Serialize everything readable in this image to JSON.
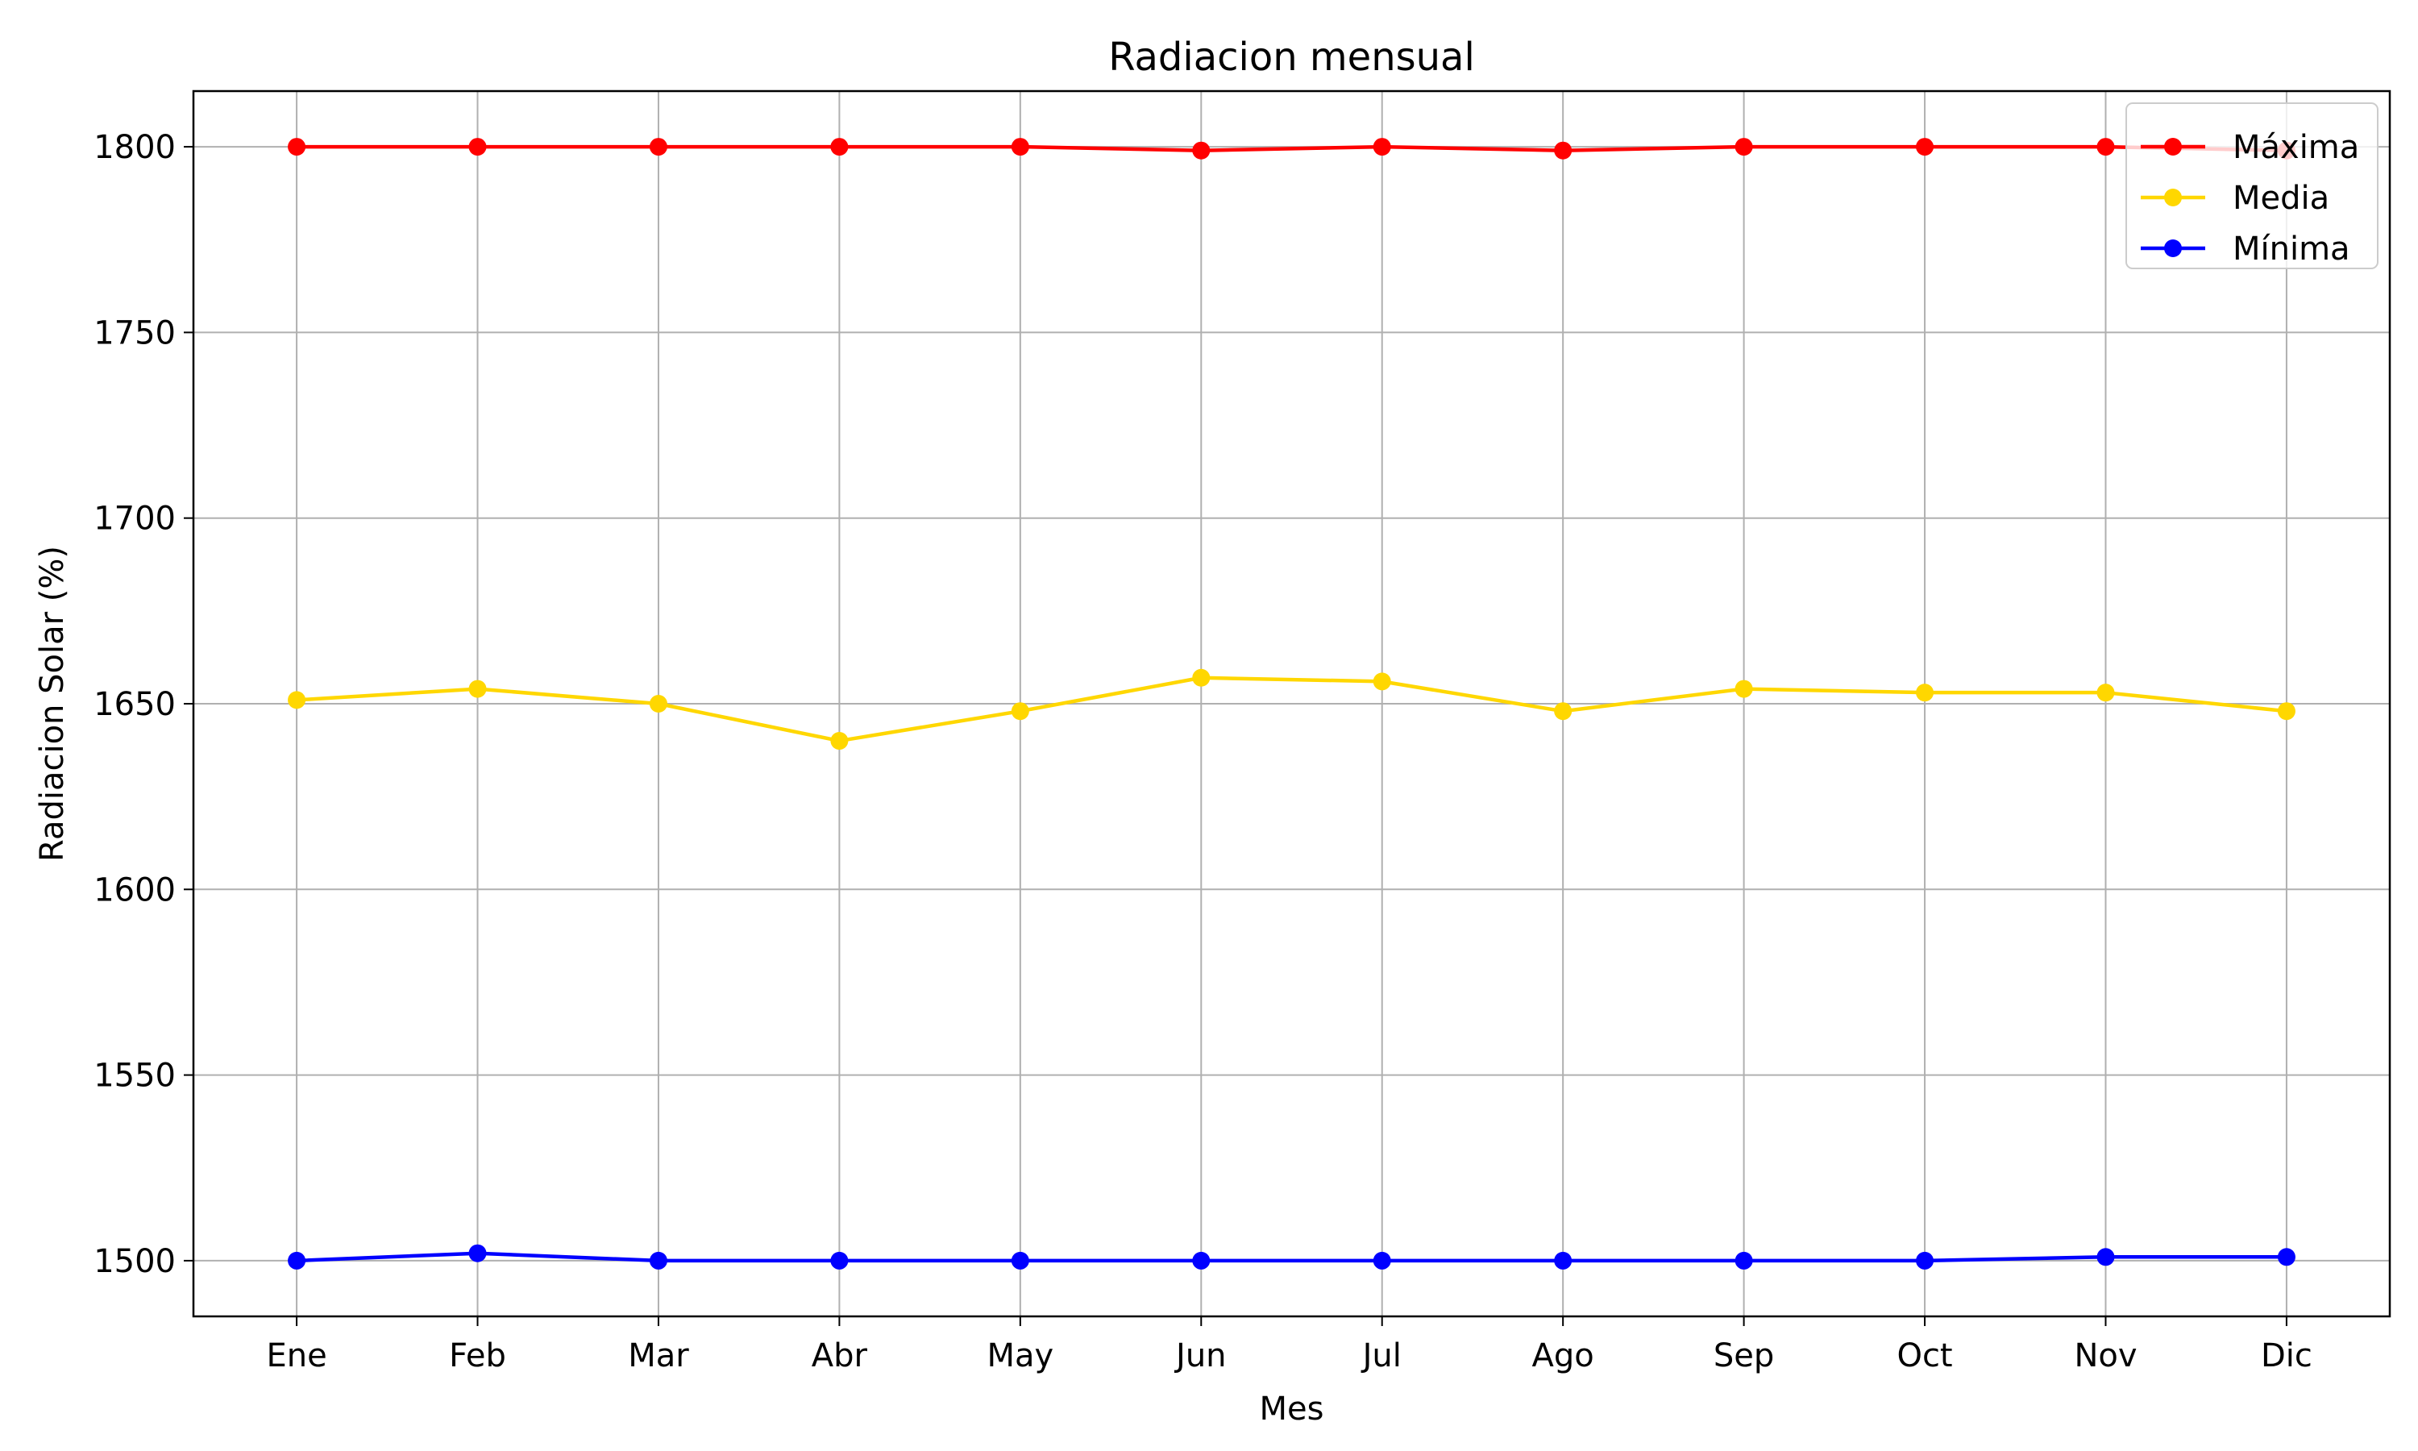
{
  "chart_data": {
    "type": "line",
    "title": "Radiacion mensual",
    "xlabel": "Mes",
    "ylabel": "Radiacion Solar (%)",
    "categories": [
      "Ene",
      "Feb",
      "Mar",
      "Abr",
      "May",
      "Jun",
      "Jul",
      "Ago",
      "Sep",
      "Oct",
      "Nov",
      "Dic"
    ],
    "ylim": [
      1485,
      1815
    ],
    "yticks": [
      1500,
      1550,
      1600,
      1650,
      1700,
      1750,
      1800
    ],
    "grid": true,
    "legend_position": "top-right",
    "series": [
      {
        "name": "Máxima",
        "color": "#ff0000",
        "values": [
          1800,
          1800,
          1800,
          1800,
          1800,
          1799,
          1800,
          1799,
          1800,
          1800,
          1800,
          1799
        ]
      },
      {
        "name": "Media",
        "color": "#ffd700",
        "values": [
          1651,
          1654,
          1650,
          1640,
          1648,
          1657,
          1656,
          1648,
          1654,
          1653,
          1653,
          1648
        ]
      },
      {
        "name": "Mínima",
        "color": "#0000ff",
        "values": [
          1500,
          1502,
          1500,
          1500,
          1500,
          1500,
          1500,
          1500,
          1500,
          1500,
          1501,
          1501
        ]
      }
    ]
  }
}
